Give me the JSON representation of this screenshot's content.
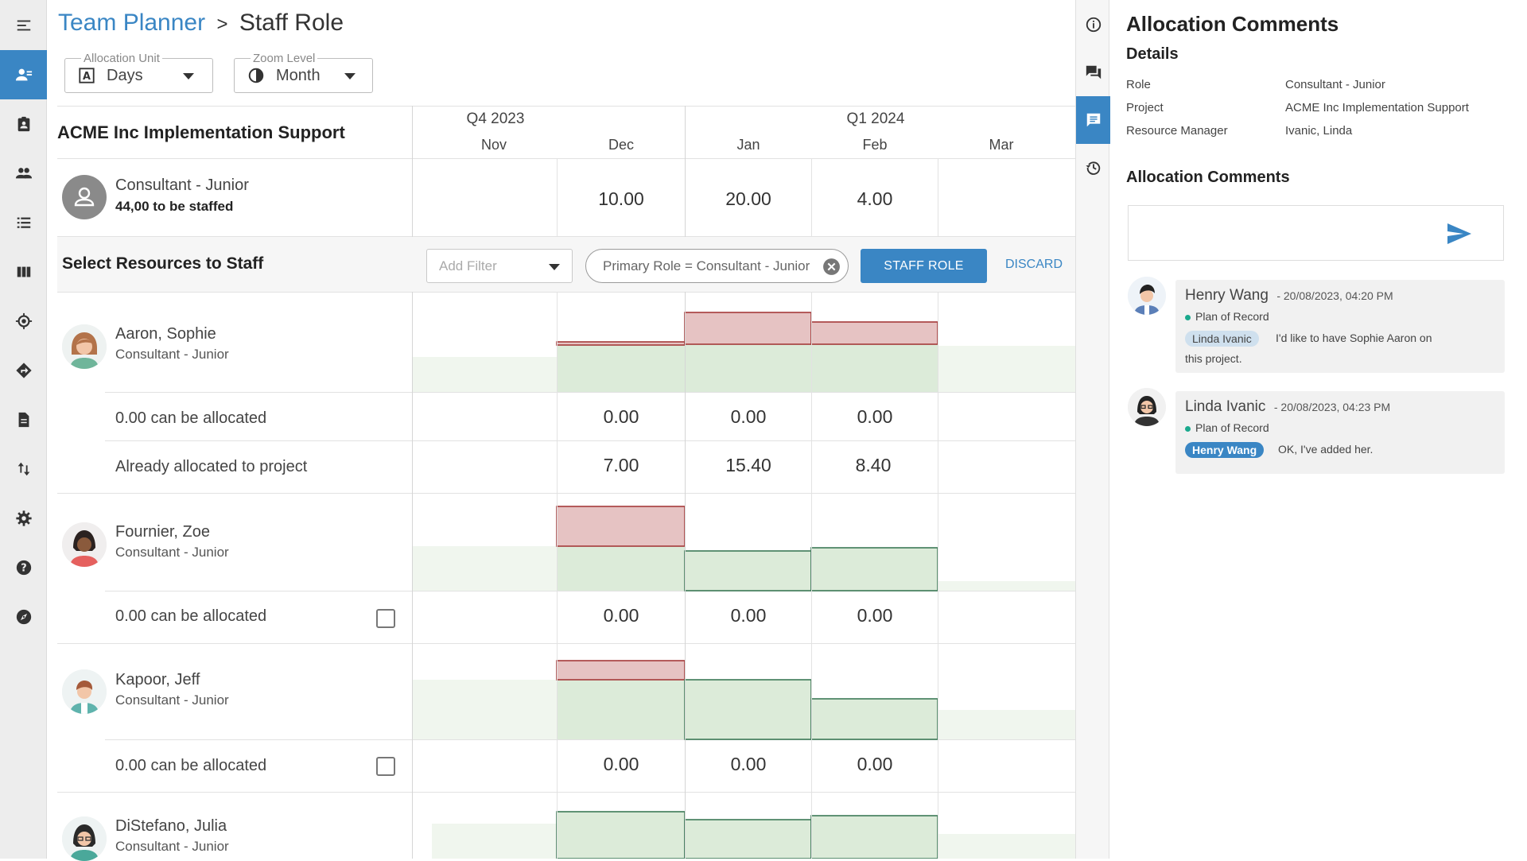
{
  "breadcrumb": {
    "parent": "Team Planner",
    "separator": ">",
    "current": "Staff Role"
  },
  "controls": {
    "allocation_unit": {
      "label": "Allocation Unit",
      "value": "Days"
    },
    "zoom_level": {
      "label": "Zoom Level",
      "value": "Month"
    }
  },
  "timeline": {
    "quarters": [
      "Q4 2023",
      "Q1 2024"
    ],
    "months": [
      "Nov",
      "Dec",
      "Jan",
      "Feb",
      "Mar"
    ]
  },
  "project": {
    "name": "ACME Inc Implementation Support",
    "role": "Consultant - Junior",
    "to_be_staffed": "44,00 to be staffed",
    "demand": [
      "",
      "10.00",
      "20.00",
      "4.00",
      ""
    ]
  },
  "filter_bar": {
    "title": "Select Resources to Staff",
    "add_filter_placeholder": "Add Filter",
    "active_filter": "Primary Role = Consultant - Junior",
    "staff_button": "STAFF ROLE",
    "discard_button": "DISCARD"
  },
  "resources": [
    {
      "name": "Aaron, Sophie",
      "role": "Consultant - Junior",
      "can_allocate_label": "0.00 can be allocated",
      "can_allocate": [
        "",
        "0.00",
        "0.00",
        "0.00",
        ""
      ],
      "already_label": "Already allocated to project",
      "already": [
        "",
        "7.00",
        "15.40",
        "8.40",
        ""
      ]
    },
    {
      "name": "Fournier, Zoe",
      "role": "Consultant - Junior",
      "can_allocate_label": "0.00 can be allocated",
      "can_allocate": [
        "",
        "0.00",
        "0.00",
        "0.00",
        ""
      ]
    },
    {
      "name": "Kapoor, Jeff",
      "role": "Consultant - Junior",
      "can_allocate_label": "0.00 can be allocated",
      "can_allocate": [
        "",
        "0.00",
        "0.00",
        "0.00",
        ""
      ]
    },
    {
      "name": "DiStefano, Julia",
      "role": "Consultant - Junior"
    }
  ],
  "colors": {
    "accent": "#3a86c4",
    "overallocated_fill": "#e6c3c3",
    "overallocated_stroke": "#a53a3a",
    "capacity_fill": "#dcebd9",
    "capacity_stroke": "#3d7a57",
    "light_fill": "#f0f6ee"
  },
  "panel": {
    "title": "Allocation Comments",
    "details_heading": "Details",
    "details": [
      {
        "label": "Role",
        "value": "Consultant - Junior"
      },
      {
        "label": "Project",
        "value": "ACME Inc Implementation Support"
      },
      {
        "label": "Resource Manager",
        "value": "Ivanic, Linda"
      }
    ],
    "comments_heading": "Allocation Comments",
    "comments": [
      {
        "author": "Henry Wang",
        "timestamp": "- 20/08/2023, 04:20 PM",
        "status": "Plan of Record",
        "mention": "Linda Ivanic",
        "text_line1": "I'd like to have Sophie Aaron on",
        "text_line2": "this project."
      },
      {
        "author": "Linda Ivanic",
        "timestamp": "- 20/08/2023, 04:23 PM",
        "status": "Plan of Record",
        "mention": "Henry Wang",
        "text_line1": "OK, I've added her."
      }
    ]
  },
  "icons": {
    "left_nav": [
      "menu-icon",
      "team-planner-icon",
      "assignment-icon",
      "people-icon",
      "list-icon",
      "columns-icon",
      "target-icon",
      "directions-icon",
      "document-icon",
      "sort-icon",
      "settings-icon",
      "help-icon",
      "compass-icon"
    ],
    "rail": [
      "info-icon",
      "forum-icon",
      "comment-icon",
      "history-icon"
    ]
  }
}
